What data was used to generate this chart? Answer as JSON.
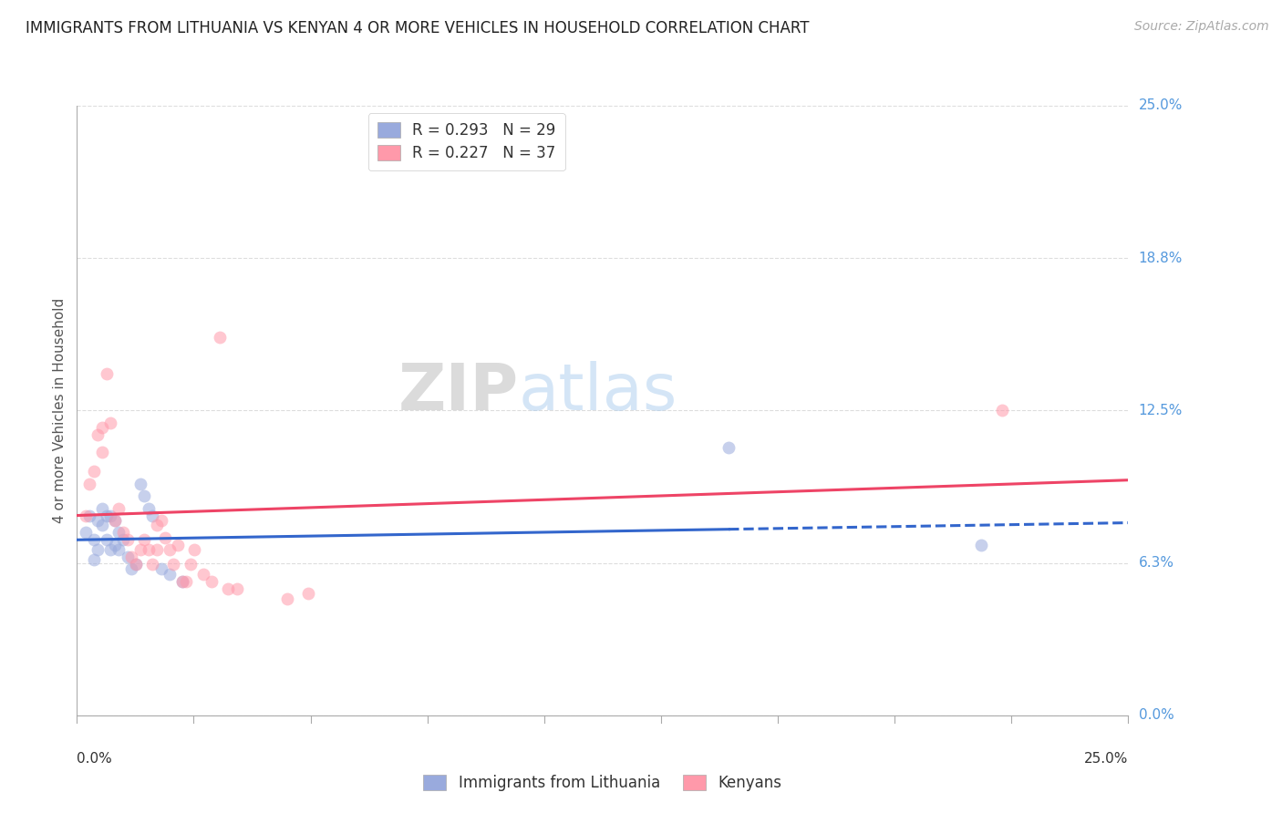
{
  "title": "IMMIGRANTS FROM LITHUANIA VS KENYAN 4 OR MORE VEHICLES IN HOUSEHOLD CORRELATION CHART",
  "source": "Source: ZipAtlas.com",
  "ylabel": "4 or more Vehicles in Household",
  "xlim": [
    0.0,
    0.25
  ],
  "ylim": [
    0.0,
    0.25
  ],
  "ytick_vals": [
    0.0,
    0.0625,
    0.125,
    0.1875,
    0.25
  ],
  "ytick_labels": [
    "0.0%",
    "6.3%",
    "12.5%",
    "18.8%",
    "25.0%"
  ],
  "xtick_vals": [
    0.0,
    0.25
  ],
  "xtick_labels": [
    "0.0%",
    "25.0%"
  ],
  "watermark_zip": "ZIP",
  "watermark_atlas": "atlas",
  "blue_scatter_x": [
    0.002,
    0.003,
    0.004,
    0.004,
    0.005,
    0.005,
    0.006,
    0.006,
    0.007,
    0.007,
    0.008,
    0.008,
    0.009,
    0.009,
    0.01,
    0.01,
    0.011,
    0.012,
    0.013,
    0.014,
    0.015,
    0.016,
    0.017,
    0.018,
    0.02,
    0.022,
    0.025,
    0.155,
    0.215
  ],
  "blue_scatter_y": [
    0.075,
    0.082,
    0.072,
    0.064,
    0.08,
    0.068,
    0.085,
    0.078,
    0.082,
    0.072,
    0.082,
    0.068,
    0.08,
    0.07,
    0.075,
    0.068,
    0.072,
    0.065,
    0.06,
    0.062,
    0.095,
    0.09,
    0.085,
    0.082,
    0.06,
    0.058,
    0.055,
    0.11,
    0.07
  ],
  "pink_scatter_x": [
    0.002,
    0.003,
    0.004,
    0.005,
    0.006,
    0.006,
    0.007,
    0.008,
    0.009,
    0.01,
    0.011,
    0.012,
    0.013,
    0.014,
    0.015,
    0.016,
    0.017,
    0.018,
    0.019,
    0.019,
    0.02,
    0.021,
    0.022,
    0.023,
    0.024,
    0.025,
    0.026,
    0.027,
    0.028,
    0.03,
    0.032,
    0.034,
    0.036,
    0.038,
    0.05,
    0.055,
    0.22
  ],
  "pink_scatter_y": [
    0.082,
    0.095,
    0.1,
    0.115,
    0.118,
    0.108,
    0.14,
    0.12,
    0.08,
    0.085,
    0.075,
    0.072,
    0.065,
    0.062,
    0.068,
    0.072,
    0.068,
    0.062,
    0.068,
    0.078,
    0.08,
    0.073,
    0.068,
    0.062,
    0.07,
    0.055,
    0.055,
    0.062,
    0.068,
    0.058,
    0.055,
    0.155,
    0.052,
    0.052,
    0.048,
    0.05,
    0.125
  ],
  "blue_line_intercept": 0.072,
  "blue_line_slope": 0.028,
  "blue_line_solid_end": 0.155,
  "pink_line_intercept": 0.082,
  "pink_line_slope": 0.058,
  "blue_color": "#99aadd",
  "pink_color": "#ff99aa",
  "blue_line_color": "#3366cc",
  "pink_line_color": "#ee4466",
  "grid_color": "#dddddd",
  "background_color": "#ffffff",
  "title_color": "#222222",
  "axis_label_color": "#555555",
  "right_tick_color": "#5599dd",
  "marker_size": 100,
  "marker_alpha": 0.55
}
